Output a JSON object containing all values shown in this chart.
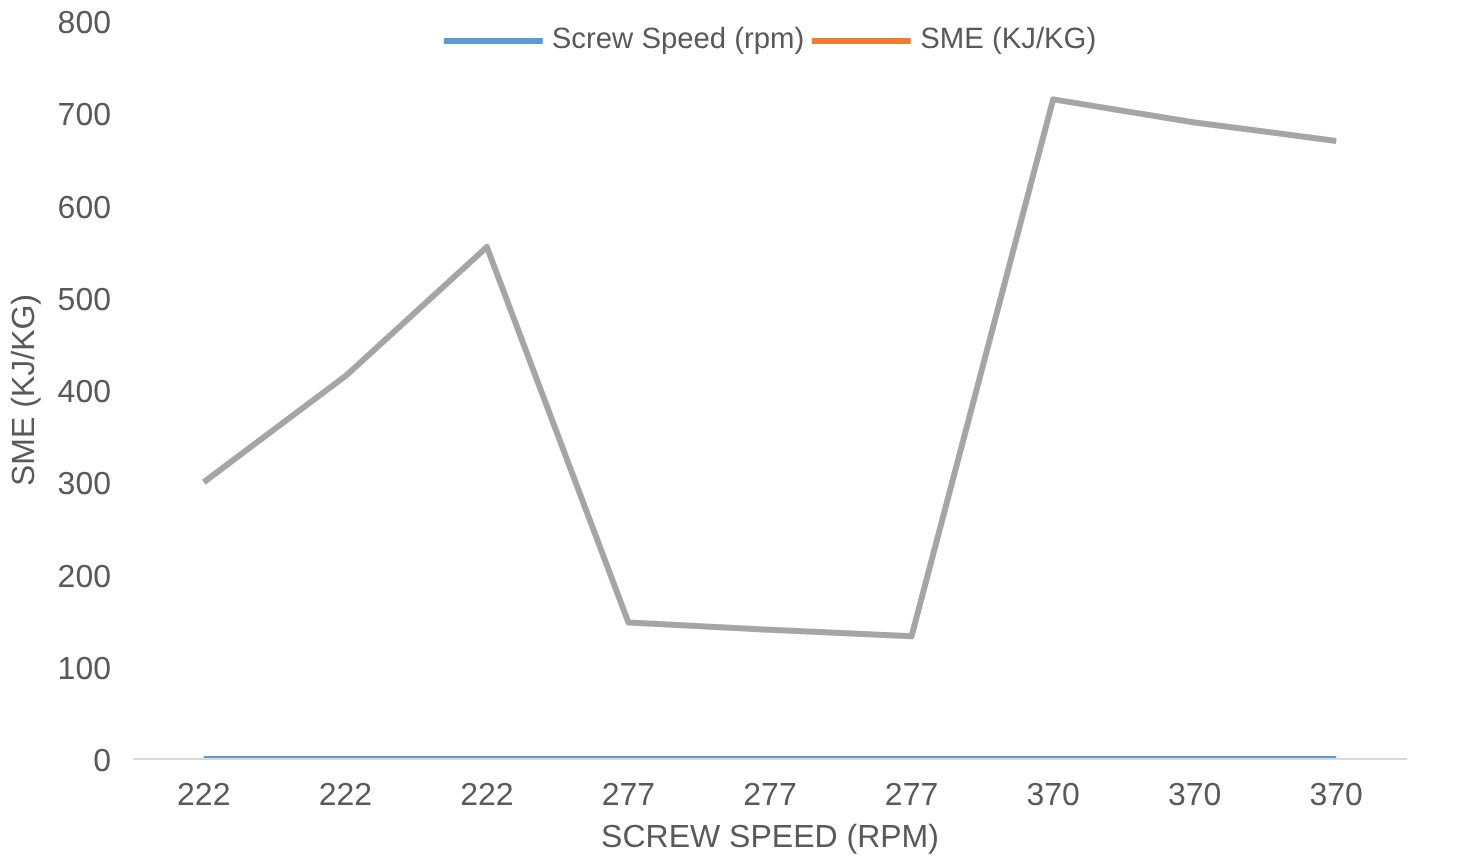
{
  "chart_data": {
    "type": "line",
    "xlabel": "SCREW SPEED (RPM)",
    "ylabel": "SME (KJ/KG)",
    "categories": [
      "222",
      "222",
      "222",
      "277",
      "277",
      "277",
      "370",
      "370",
      "370"
    ],
    "series": [
      {
        "name": "Screw Speed (rpm)",
        "color": "#5b9bd5",
        "values": [
          0,
          0,
          0,
          0,
          0,
          0,
          0,
          0,
          0
        ]
      },
      {
        "name": "SME (KJ/KG)",
        "color": "#ed7d31",
        "values": [
          null,
          null,
          null,
          null,
          null,
          null,
          null,
          null,
          null
        ]
      },
      {
        "color": "#a5a5a5",
        "values": [
          300,
          415,
          555,
          148,
          140,
          133,
          715,
          690,
          670
        ]
      }
    ],
    "ylim": [
      0,
      800
    ],
    "yticks": [
      0,
      100,
      200,
      300,
      400,
      500,
      600,
      700,
      800
    ],
    "grid": false,
    "legend": "top",
    "marker": "none"
  }
}
